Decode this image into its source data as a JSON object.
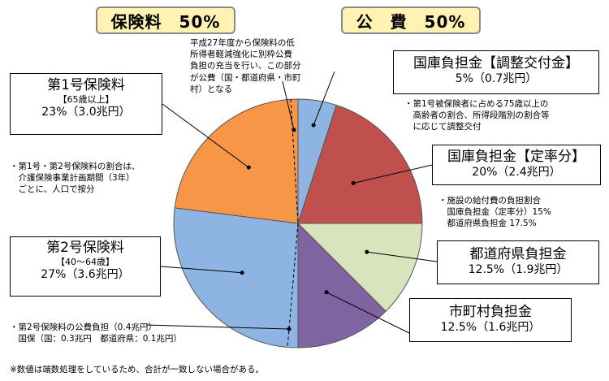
{
  "headers": {
    "left": "保険料　50%",
    "right": "公　費　50%"
  },
  "boxes": {
    "k1": {
      "title": "第1号保険料",
      "sub": "【65歳以上】",
      "pct": "23%（3.0兆円）"
    },
    "k2": {
      "title": "第2号保険料",
      "sub": "【40～64歳】",
      "pct": "27%（3.6兆円）"
    },
    "chosei": {
      "title": "国庫負担金【調整交付金】",
      "pct": "5%（0.7兆円）"
    },
    "teiritsu": {
      "title": "国庫負担金【定率分】",
      "pct": "20%（2.4兆円）"
    },
    "todofuken": {
      "title": "都道府県負担金",
      "pct": "12.5%（1.9兆円）"
    },
    "shichoson": {
      "title": "市町村負担金",
      "pct": "12.5%（1.6兆円）"
    }
  },
  "notes": {
    "top": "平成27年度から保険料の低\n所得者軽減強化に別枠公費\n負担の充当を行い、この部分\nが公費（国・都道府県・市町\n村）となる",
    "left": "・第1号・第2号保険料の割合は、\n　介護保険事業計画期間（3年）\n　ごとに、人口で按分",
    "chosei": "・第1号被保険者に占める75歳以上の\n　高齢者の割合、所得段階別の割合等\n　に応じて調整交付",
    "teiritsu": "・施設の給付費の負担割合\n　国庫負担金（定率分）15%\n　都道府県負担金 17.5%",
    "bottom": "・第2号保険料の公費負担（0.4兆円）\n　国保（国：0.3兆円　都道府県：0.1兆円）",
    "footer": "※数値は端数処理をしているため、合計が一致しない場合がある。"
  },
  "chart_data": {
    "type": "pie",
    "series": [
      {
        "label": "国庫負担金【調整交付金】",
        "value": 5,
        "color": "#8db4e2"
      },
      {
        "label": "国庫負担金【定率分】",
        "value": 20,
        "color": "#c0504d"
      },
      {
        "label": "都道府県負担金",
        "value": 12.5,
        "color": "#d7e4bc"
      },
      {
        "label": "市町村負担金",
        "value": 12.5,
        "color": "#8064a2"
      },
      {
        "label": "第2号保険料",
        "value": 27,
        "color": "#8db4e2"
      },
      {
        "label": "第1号保険料",
        "value": 23,
        "color": "#f79646"
      }
    ]
  }
}
